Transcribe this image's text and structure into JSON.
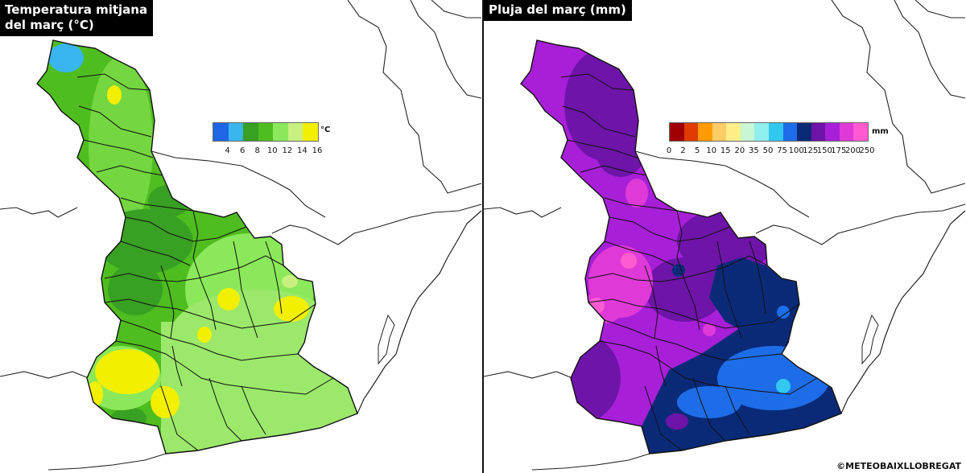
{
  "left_panel": {
    "title_line1": "Temperatura mitjana",
    "title_line2": "del març (°C)",
    "legend": {
      "unit": "°C",
      "colors": [
        "#1f66e5",
        "#39b6ef",
        "#38a023",
        "#4fbd1f",
        "#8be85a",
        "#c8f080",
        "#f2ef00"
      ],
      "ticks": [
        "4",
        "6",
        "8",
        "10",
        "12",
        "14",
        "16"
      ]
    }
  },
  "right_panel": {
    "title": "Pluja del març (mm)",
    "legend": {
      "unit": "mm",
      "colors": [
        "#a00000",
        "#e03b00",
        "#ff9a00",
        "#ffcc66",
        "#ffef88",
        "#c9f6d4",
        "#8ff0ee",
        "#32c8f0",
        "#1e6de8",
        "#0a2a78",
        "#6e14a8",
        "#a81fd8",
        "#df3ad8",
        "#ff5ad2"
      ],
      "ticks": [
        "0",
        "2",
        "5",
        "10",
        "15",
        "20",
        "35",
        "50",
        "75",
        "100",
        "125",
        "150",
        "175",
        "200",
        "250"
      ]
    }
  },
  "credit": "©METEOBAIXLLOBREGAT"
}
